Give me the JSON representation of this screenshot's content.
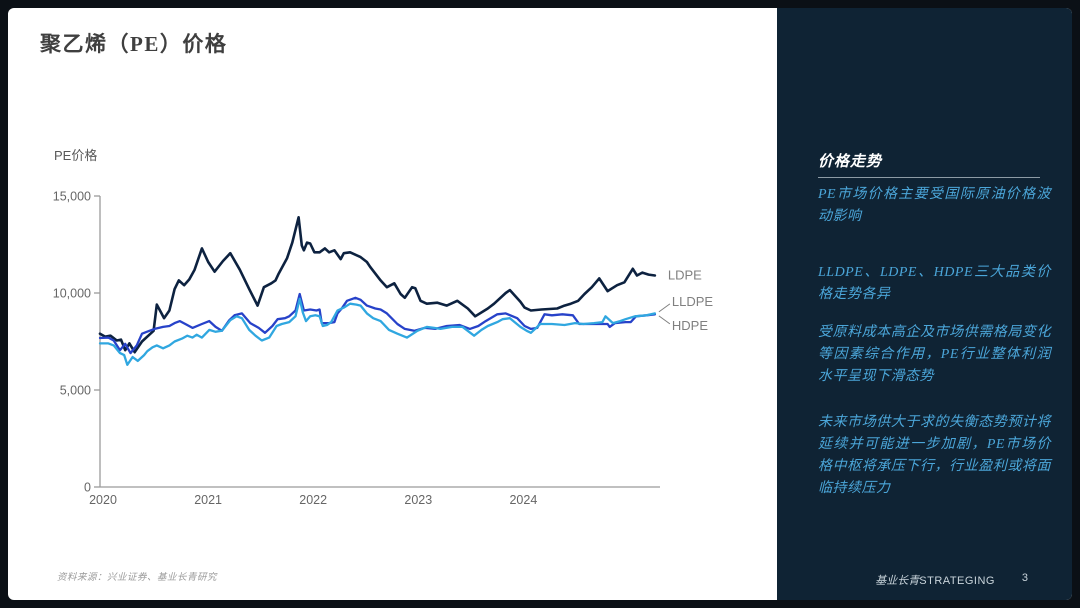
{
  "slide": {
    "title": "聚乙烯（PE）价格",
    "footer": {
      "source": "资料来源：兴业证券、基业长青研究",
      "brand_cn": "基业长青",
      "brand_en": "STRATEGING",
      "page_number": "3"
    }
  },
  "sidebar": {
    "heading": "价格走势",
    "bullets": [
      "PE市场价格主要受国际原油价格波动影响",
      "LLDPE、LDPE、HDPE三大品类价格走势各异",
      "受原料成本高企及市场供需格局变化等因素综合作用，PE行业整体利润水平呈现下滑态势",
      "未来市场供大于求的失衡态势预计将延续并可能进一步加剧，PE市场价格中枢将承压下行，行业盈利或将面临持续压力"
    ],
    "colors": {
      "background": "#0f2334",
      "heading": "#ffffff",
      "text": "#4ba6d9",
      "divider": "#8d9ba5"
    }
  },
  "chart_data": {
    "type": "line",
    "title": "PE价格",
    "ylabel": "PE价格",
    "legend_position": "right-of-line-ends",
    "grid": false,
    "x_axis": {
      "range": [
        2020,
        2025.3
      ],
      "ticks": [
        2020,
        2021,
        2022,
        2023,
        2024
      ],
      "labels": [
        "2020",
        "2021",
        "2022",
        "2023",
        "2024"
      ]
    },
    "y_axis": {
      "range": [
        0,
        15000
      ],
      "ticks": [
        0,
        5000,
        10000,
        15000
      ],
      "labels": [
        "0",
        "5,000",
        "10,000",
        "15,000"
      ]
    },
    "colors": {
      "axis": "#9b9b9b",
      "tick_label": "#666666",
      "series_label": "#808080"
    },
    "series": [
      {
        "name": "LDPE",
        "color": "#0d2240",
        "points": [
          [
            2020.0,
            7900
          ],
          [
            2020.05,
            7750
          ],
          [
            2020.1,
            7800
          ],
          [
            2020.16,
            7550
          ],
          [
            2020.2,
            7600
          ],
          [
            2020.24,
            7050
          ],
          [
            2020.28,
            7400
          ],
          [
            2020.33,
            6950
          ],
          [
            2020.4,
            7500
          ],
          [
            2020.47,
            7850
          ],
          [
            2020.51,
            8050
          ],
          [
            2020.54,
            9400
          ],
          [
            2020.58,
            9000
          ],
          [
            2020.61,
            8700
          ],
          [
            2020.66,
            9100
          ],
          [
            2020.71,
            10200
          ],
          [
            2020.75,
            10650
          ],
          [
            2020.8,
            10400
          ],
          [
            2020.85,
            10700
          ],
          [
            2020.9,
            11200
          ],
          [
            2020.97,
            12300
          ],
          [
            2021.03,
            11600
          ],
          [
            2021.09,
            11100
          ],
          [
            2021.17,
            11650
          ],
          [
            2021.24,
            12050
          ],
          [
            2021.33,
            11200
          ],
          [
            2021.42,
            10200
          ],
          [
            2021.5,
            9350
          ],
          [
            2021.56,
            10300
          ],
          [
            2021.63,
            10500
          ],
          [
            2021.67,
            10650
          ],
          [
            2021.7,
            11000
          ],
          [
            2021.78,
            11800
          ],
          [
            2021.83,
            12600
          ],
          [
            2021.89,
            13900
          ],
          [
            2021.92,
            12450
          ],
          [
            2021.94,
            12200
          ],
          [
            2021.97,
            12600
          ],
          [
            2022.0,
            12550
          ],
          [
            2022.04,
            12100
          ],
          [
            2022.09,
            12100
          ],
          [
            2022.14,
            12300
          ],
          [
            2022.18,
            12100
          ],
          [
            2022.23,
            12200
          ],
          [
            2022.29,
            11750
          ],
          [
            2022.32,
            12050
          ],
          [
            2022.38,
            12100
          ],
          [
            2022.48,
            11850
          ],
          [
            2022.54,
            11600
          ],
          [
            2022.57,
            11350
          ],
          [
            2022.67,
            10650
          ],
          [
            2022.73,
            10300
          ],
          [
            2022.8,
            10500
          ],
          [
            2022.86,
            9950
          ],
          [
            2022.9,
            9750
          ],
          [
            2022.97,
            10300
          ],
          [
            2023.0,
            10250
          ],
          [
            2023.05,
            9600
          ],
          [
            2023.11,
            9450
          ],
          [
            2023.21,
            9500
          ],
          [
            2023.3,
            9350
          ],
          [
            2023.4,
            9600
          ],
          [
            2023.5,
            9200
          ],
          [
            2023.57,
            8800
          ],
          [
            2023.69,
            9200
          ],
          [
            2023.75,
            9450
          ],
          [
            2023.86,
            10000
          ],
          [
            2023.9,
            10150
          ],
          [
            2024.0,
            9550
          ],
          [
            2024.04,
            9250
          ],
          [
            2024.1,
            9100
          ],
          [
            2024.2,
            9150
          ],
          [
            2024.35,
            9200
          ],
          [
            2024.42,
            9350
          ],
          [
            2024.48,
            9450
          ],
          [
            2024.55,
            9600
          ],
          [
            2024.61,
            9950
          ],
          [
            2024.68,
            10300
          ],
          [
            2024.75,
            10750
          ],
          [
            2024.83,
            10100
          ],
          [
            2024.92,
            10400
          ],
          [
            2024.99,
            10550
          ],
          [
            2025.07,
            11250
          ],
          [
            2025.11,
            10900
          ],
          [
            2025.16,
            11050
          ],
          [
            2025.22,
            10950
          ],
          [
            2025.28,
            10900
          ]
        ]
      },
      {
        "name": "LLDPE",
        "color": "#2742c9",
        "points": [
          [
            2020.0,
            7680
          ],
          [
            2020.08,
            7700
          ],
          [
            2020.13,
            7550
          ],
          [
            2020.19,
            7050
          ],
          [
            2020.24,
            7380
          ],
          [
            2020.29,
            6900
          ],
          [
            2020.35,
            7300
          ],
          [
            2020.4,
            7900
          ],
          [
            2020.47,
            8050
          ],
          [
            2020.52,
            8150
          ],
          [
            2020.6,
            8250
          ],
          [
            2020.66,
            8300
          ],
          [
            2020.71,
            8450
          ],
          [
            2020.76,
            8550
          ],
          [
            2020.83,
            8350
          ],
          [
            2020.88,
            8200
          ],
          [
            2020.97,
            8400
          ],
          [
            2021.04,
            8550
          ],
          [
            2021.1,
            8250
          ],
          [
            2021.16,
            8050
          ],
          [
            2021.23,
            8600
          ],
          [
            2021.28,
            8850
          ],
          [
            2021.35,
            8950
          ],
          [
            2021.43,
            8450
          ],
          [
            2021.51,
            8200
          ],
          [
            2021.57,
            7950
          ],
          [
            2021.64,
            8300
          ],
          [
            2021.69,
            8650
          ],
          [
            2021.76,
            8700
          ],
          [
            2021.8,
            8800
          ],
          [
            2021.86,
            9100
          ],
          [
            2021.9,
            9950
          ],
          [
            2021.94,
            9100
          ],
          [
            2022.0,
            9150
          ],
          [
            2022.06,
            9100
          ],
          [
            2022.09,
            9150
          ],
          [
            2022.11,
            8450
          ],
          [
            2022.18,
            8450
          ],
          [
            2022.23,
            8500
          ],
          [
            2022.26,
            8950
          ],
          [
            2022.3,
            9200
          ],
          [
            2022.35,
            9600
          ],
          [
            2022.43,
            9750
          ],
          [
            2022.48,
            9650
          ],
          [
            2022.54,
            9350
          ],
          [
            2022.62,
            9200
          ],
          [
            2022.67,
            9150
          ],
          [
            2022.73,
            8950
          ],
          [
            2022.83,
            8400
          ],
          [
            2022.9,
            8150
          ],
          [
            2022.99,
            8050
          ],
          [
            2023.09,
            8200
          ],
          [
            2023.19,
            8150
          ],
          [
            2023.3,
            8300
          ],
          [
            2023.42,
            8350
          ],
          [
            2023.52,
            8150
          ],
          [
            2023.6,
            8300
          ],
          [
            2023.67,
            8550
          ],
          [
            2023.78,
            8900
          ],
          [
            2023.86,
            8950
          ],
          [
            2023.97,
            8700
          ],
          [
            2024.04,
            8300
          ],
          [
            2024.1,
            8150
          ],
          [
            2024.16,
            8200
          ],
          [
            2024.23,
            8900
          ],
          [
            2024.3,
            8850
          ],
          [
            2024.4,
            8900
          ],
          [
            2024.5,
            8850
          ],
          [
            2024.56,
            8400
          ],
          [
            2024.65,
            8400
          ],
          [
            2024.75,
            8400
          ],
          [
            2024.83,
            8400
          ],
          [
            2024.85,
            8250
          ],
          [
            2024.9,
            8450
          ],
          [
            2025.0,
            8500
          ],
          [
            2025.05,
            8500
          ],
          [
            2025.1,
            8800
          ],
          [
            2025.2,
            8850
          ],
          [
            2025.28,
            8900
          ]
        ]
      },
      {
        "name": "HDPE",
        "color": "#30a7e0",
        "points": [
          [
            2020.0,
            7400
          ],
          [
            2020.08,
            7400
          ],
          [
            2020.13,
            7300
          ],
          [
            2020.19,
            6900
          ],
          [
            2020.23,
            6800
          ],
          [
            2020.26,
            6300
          ],
          [
            2020.31,
            6700
          ],
          [
            2020.36,
            6500
          ],
          [
            2020.42,
            6800
          ],
          [
            2020.45,
            7000
          ],
          [
            2020.5,
            7200
          ],
          [
            2020.54,
            7300
          ],
          [
            2020.6,
            7150
          ],
          [
            2020.66,
            7300
          ],
          [
            2020.71,
            7500
          ],
          [
            2020.78,
            7650
          ],
          [
            2020.83,
            7800
          ],
          [
            2020.88,
            7700
          ],
          [
            2020.92,
            7850
          ],
          [
            2020.97,
            7700
          ],
          [
            2021.04,
            8100
          ],
          [
            2021.1,
            8000
          ],
          [
            2021.16,
            8050
          ],
          [
            2021.24,
            8600
          ],
          [
            2021.3,
            8800
          ],
          [
            2021.35,
            8700
          ],
          [
            2021.42,
            8100
          ],
          [
            2021.48,
            7800
          ],
          [
            2021.54,
            7550
          ],
          [
            2021.61,
            7700
          ],
          [
            2021.68,
            8300
          ],
          [
            2021.73,
            8400
          ],
          [
            2021.8,
            8500
          ],
          [
            2021.86,
            8800
          ],
          [
            2021.9,
            9700
          ],
          [
            2021.93,
            9000
          ],
          [
            2021.96,
            8550
          ],
          [
            2022.0,
            8800
          ],
          [
            2022.05,
            8850
          ],
          [
            2022.09,
            8800
          ],
          [
            2022.12,
            8300
          ],
          [
            2022.16,
            8350
          ],
          [
            2022.2,
            8500
          ],
          [
            2022.26,
            9100
          ],
          [
            2022.32,
            9250
          ],
          [
            2022.38,
            9450
          ],
          [
            2022.44,
            9400
          ],
          [
            2022.48,
            9350
          ],
          [
            2022.54,
            8950
          ],
          [
            2022.6,
            8700
          ],
          [
            2022.67,
            8550
          ],
          [
            2022.75,
            8100
          ],
          [
            2022.83,
            7900
          ],
          [
            2022.92,
            7700
          ],
          [
            2023.02,
            8050
          ],
          [
            2023.11,
            8250
          ],
          [
            2023.18,
            8200
          ],
          [
            2023.24,
            8150
          ],
          [
            2023.35,
            8250
          ],
          [
            2023.45,
            8250
          ],
          [
            2023.56,
            7800
          ],
          [
            2023.63,
            8100
          ],
          [
            2023.69,
            8300
          ],
          [
            2023.78,
            8500
          ],
          [
            2023.83,
            8650
          ],
          [
            2023.9,
            8700
          ],
          [
            2024.0,
            8250
          ],
          [
            2024.06,
            8050
          ],
          [
            2024.1,
            7950
          ],
          [
            2024.19,
            8400
          ],
          [
            2024.3,
            8400
          ],
          [
            2024.42,
            8350
          ],
          [
            2024.52,
            8450
          ],
          [
            2024.6,
            8400
          ],
          [
            2024.7,
            8450
          ],
          [
            2024.78,
            8500
          ],
          [
            2024.81,
            8800
          ],
          [
            2024.88,
            8450
          ],
          [
            2024.95,
            8550
          ],
          [
            2025.0,
            8650
          ],
          [
            2025.09,
            8800
          ],
          [
            2025.2,
            8850
          ],
          [
            2025.28,
            8950
          ]
        ]
      }
    ]
  }
}
